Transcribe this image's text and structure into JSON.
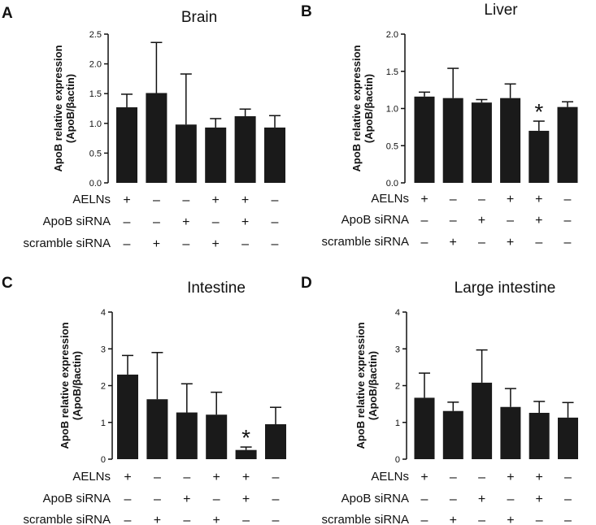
{
  "figure": {
    "row_labels": [
      "AELNs",
      "ApoB siRNA",
      "scramble siRNA"
    ],
    "conditions": [
      [
        "+",
        "–",
        "–",
        "+",
        "+",
        "–"
      ],
      [
        "–",
        "–",
        "+",
        "–",
        "+",
        "–"
      ],
      [
        "–",
        "+",
        "–",
        "+",
        "–",
        "–"
      ]
    ],
    "bar_color": "#1a1a1a"
  },
  "chart_data": [
    {
      "panel": "A",
      "type": "bar",
      "title": "Brain",
      "ylabel_line1": "ApoB relative expression",
      "ylabel_line2": "(ApoB/βactin)",
      "ylim": [
        0,
        2.5
      ],
      "yticks": [
        "0.0",
        "0.5",
        "1.0",
        "1.5",
        "2.0",
        "2.5"
      ],
      "values": [
        1.27,
        1.51,
        0.98,
        0.93,
        1.12,
        0.93
      ],
      "errors": [
        0.22,
        0.85,
        0.85,
        0.15,
        0.12,
        0.2
      ],
      "significant": [
        false,
        false,
        false,
        false,
        false,
        false
      ],
      "significance_marker": "*"
    },
    {
      "panel": "B",
      "type": "bar",
      "title": "Liver",
      "ylabel_line1": "ApoB relative expression",
      "ylabel_line2": "(ApoB/βactin)",
      "ylim": [
        0,
        2.0
      ],
      "yticks": [
        "0.0",
        "0.5",
        "1.0",
        "1.5",
        "2.0"
      ],
      "values": [
        1.16,
        1.14,
        1.08,
        1.14,
        0.7,
        1.02
      ],
      "errors": [
        0.06,
        0.4,
        0.04,
        0.19,
        0.13,
        0.07
      ],
      "significant": [
        false,
        false,
        false,
        false,
        true,
        false
      ],
      "significance_marker": "*"
    },
    {
      "panel": "C",
      "type": "bar",
      "title": "Intestine",
      "ylabel_line1": "ApoB relative expression",
      "ylabel_line2": "(ApoB/βactin)",
      "ylim": [
        0,
        4
      ],
      "yticks": [
        "0",
        "1",
        "2",
        "3",
        "4"
      ],
      "values": [
        2.3,
        1.63,
        1.27,
        1.21,
        0.25,
        0.95
      ],
      "errors": [
        0.52,
        1.27,
        0.78,
        0.61,
        0.08,
        0.46
      ],
      "significant": [
        false,
        false,
        false,
        false,
        true,
        false
      ],
      "significance_marker": "*"
    },
    {
      "panel": "D",
      "type": "bar",
      "title": "Large intestine",
      "ylabel_line1": "ApoB relative expression",
      "ylabel_line2": "(ApoB/βactin)",
      "ylim": [
        0,
        4
      ],
      "yticks": [
        "0",
        "1",
        "2",
        "3",
        "4"
      ],
      "values": [
        1.67,
        1.31,
        2.08,
        1.42,
        1.26,
        1.13
      ],
      "errors": [
        0.67,
        0.24,
        0.89,
        0.5,
        0.31,
        0.41
      ],
      "significant": [
        false,
        false,
        false,
        false,
        false,
        false
      ],
      "significance_marker": "*"
    }
  ]
}
